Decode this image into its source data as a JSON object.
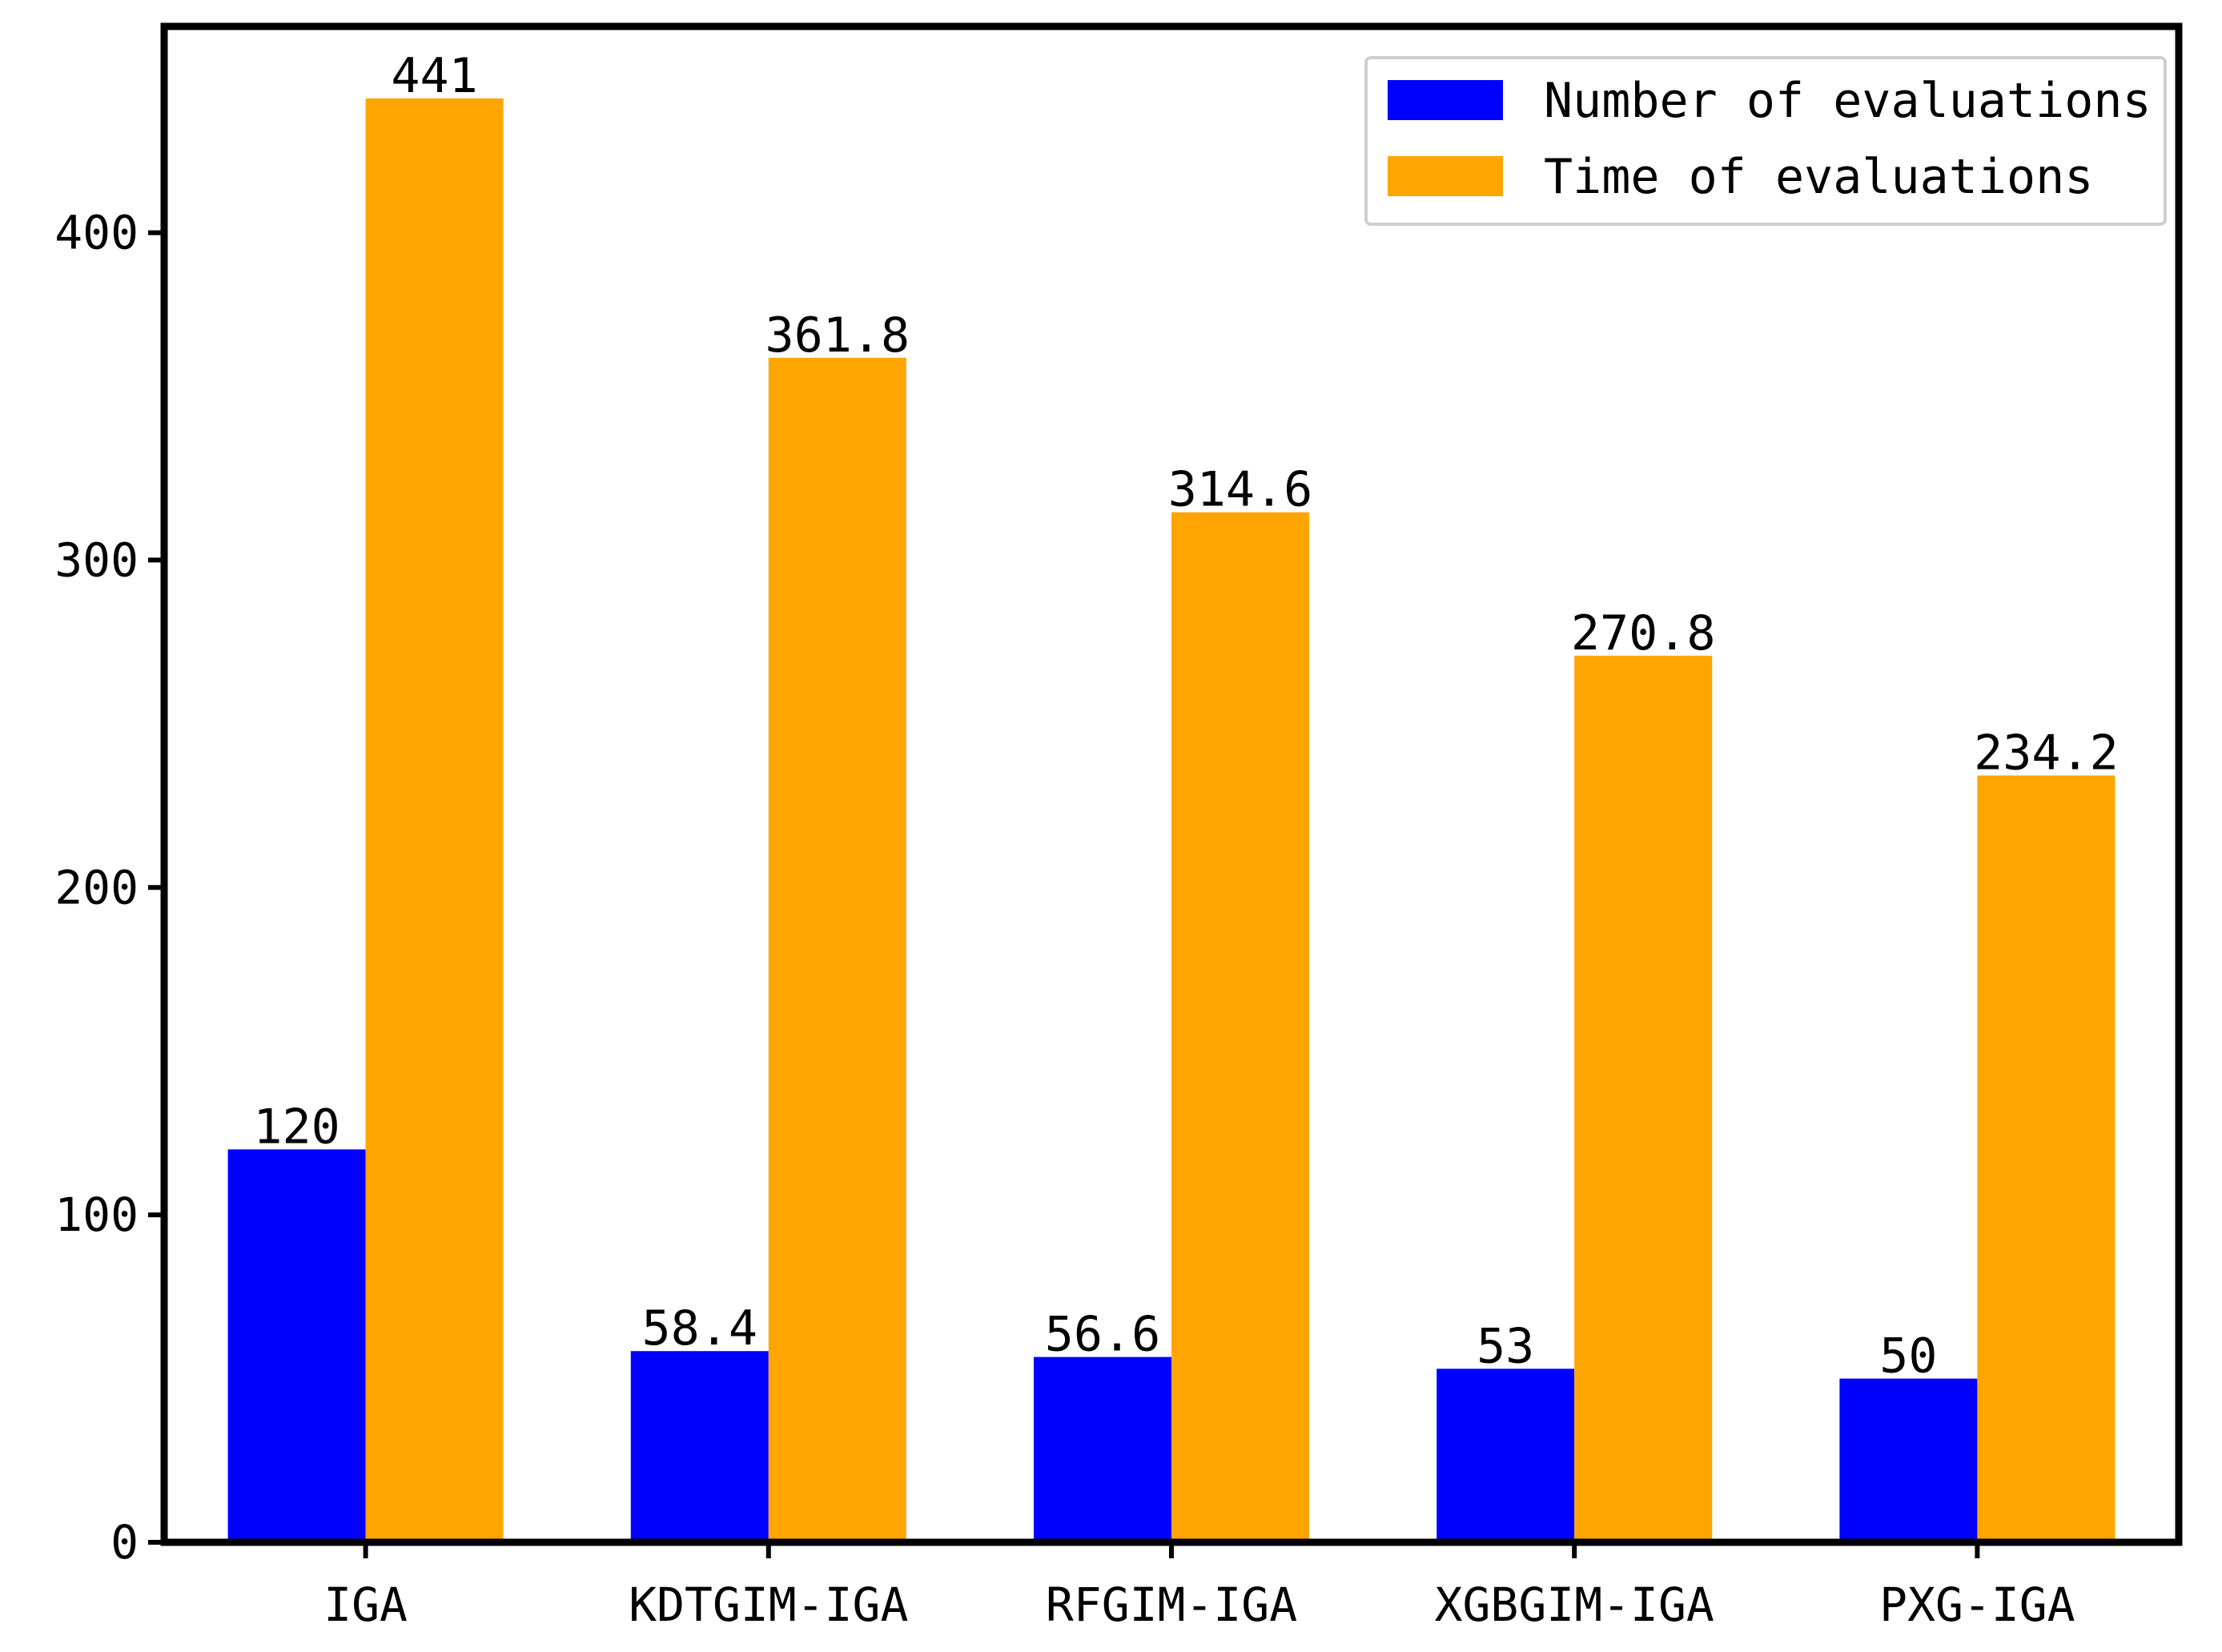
{
  "chart_data": {
    "type": "bar",
    "title": "",
    "xlabel": "",
    "ylabel": "",
    "categories": [
      "IGA",
      "KDTGIM-IGA",
      "RFGIM-IGA",
      "XGBGIM-IGA",
      "PXG-IGA"
    ],
    "series": [
      {
        "name": "Number of evaluations",
        "color": "#0000ff",
        "values": [
          120,
          58.4,
          56.6,
          53,
          50
        ],
        "labels": [
          "120",
          "58.4",
          "56.6",
          "53",
          "50"
        ]
      },
      {
        "name": "Time of evaluations",
        "color": "#ffa500",
        "values": [
          441,
          361.8,
          314.6,
          270.8,
          234.2
        ],
        "labels": [
          "441",
          "361.8",
          "314.6",
          "270.8",
          "234.2"
        ]
      }
    ],
    "ylim": [
      0,
      463
    ],
    "yticks": [
      0,
      100,
      200,
      300,
      400
    ],
    "ytick_labels": [
      "0",
      "100",
      "200",
      "300",
      "400"
    ],
    "grid": false,
    "legend_position": "top-right"
  }
}
